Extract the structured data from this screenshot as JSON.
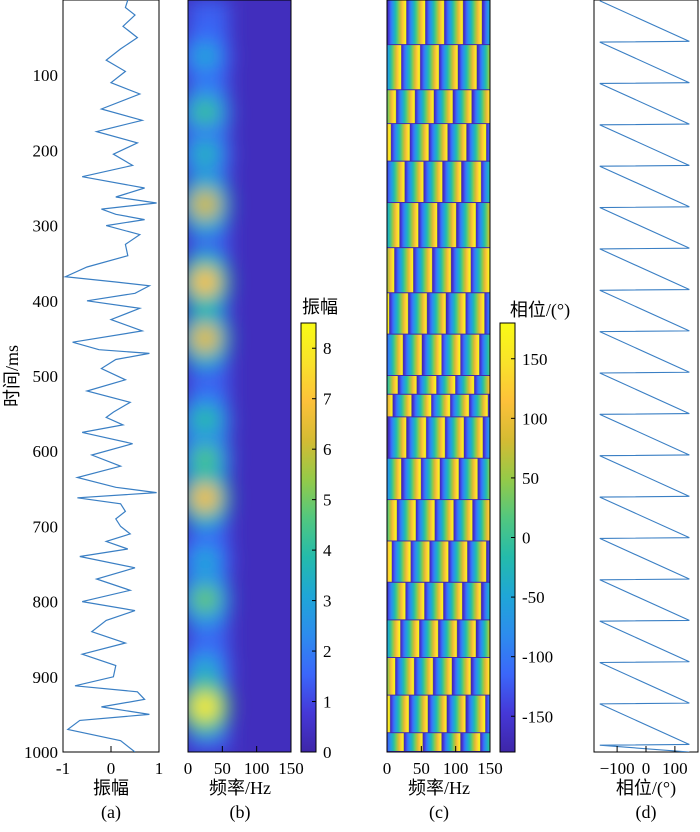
{
  "figure": {
    "panel_labels": [
      "(a)",
      "(b)",
      "(c)",
      "(d)"
    ],
    "shared_ylabel": "时间/ms",
    "y_ticks": [
      100,
      200,
      300,
      400,
      500,
      600,
      700,
      800,
      900,
      1000
    ]
  },
  "colors": {
    "trace": "#3a7fc4",
    "frame": "#000000"
  },
  "colormap": [
    "#3e26a8",
    "#4538d7",
    "#3b67fa",
    "#2d8ced",
    "#1fa6d7",
    "#24bbab",
    "#52c77f",
    "#95ca48",
    "#d5bb33",
    "#fdc13a",
    "#f9e32a",
    "#f9fb15"
  ],
  "chart_data": [
    {
      "type": "line",
      "panel": "(a)",
      "xlabel": "振幅",
      "ylabel": "时间/ms",
      "xlim": [
        -1,
        1
      ],
      "ylim": [
        0,
        1000
      ],
      "y_reversed": true,
      "x_ticks": [
        -1,
        0,
        1
      ],
      "y": [
        0,
        10,
        20,
        35,
        50,
        65,
        80,
        95,
        110,
        125,
        145,
        160,
        175,
        190,
        205,
        220,
        235,
        250,
        262,
        270,
        278,
        285,
        292,
        300,
        312,
        325,
        340,
        355,
        368,
        375,
        380,
        390,
        400,
        410,
        425,
        440,
        455,
        465,
        470,
        478,
        490,
        505,
        520,
        535,
        548,
        555,
        565,
        575,
        590,
        605,
        620,
        635,
        648,
        655,
        662,
        670,
        680,
        690,
        700,
        710,
        720,
        730,
        740,
        755,
        770,
        785,
        800,
        812,
        825,
        840,
        855,
        870,
        885,
        900,
        912,
        920,
        930,
        940,
        950,
        958,
        970,
        985,
        1000
      ],
      "values": [
        0.35,
        0.3,
        0.5,
        0.25,
        0.55,
        0.2,
        -0.1,
        0.3,
        0.0,
        0.6,
        -0.2,
        0.65,
        -0.3,
        0.55,
        0.05,
        0.45,
        -0.6,
        0.7,
        0.1,
        0.95,
        -0.2,
        0.1,
        0.7,
        -0.1,
        0.6,
        0.3,
        0.35,
        -0.5,
        -0.95,
        0.1,
        0.8,
        0.5,
        -0.5,
        0.6,
        0.0,
        0.65,
        -0.8,
        -0.25,
        0.8,
        0.1,
        -0.2,
        0.3,
        -0.5,
        0.4,
        0.05,
        -0.1,
        0.25,
        -0.6,
        0.45,
        -0.4,
        0.2,
        -0.7,
        0.1,
        0.95,
        -0.7,
        0.2,
        0.3,
        0.1,
        0.2,
        0.4,
        -0.1,
        0.35,
        -0.65,
        0.5,
        -0.3,
        0.4,
        -0.6,
        0.5,
        -0.1,
        -0.4,
        0.3,
        -0.6,
        0.1,
        0.05,
        -0.75,
        0.55,
        0.7,
        -0.2,
        0.8,
        -0.65,
        -0.9,
        0.2,
        0.5
      ]
    },
    {
      "type": "heatmap",
      "panel": "(b)",
      "xlabel": "频率/Hz",
      "xlim": [
        0,
        150
      ],
      "ylim": [
        0,
        1000
      ],
      "x_ticks": [
        0,
        50,
        100,
        150
      ],
      "colorbar": {
        "label": "振幅",
        "ticks": [
          0,
          1,
          2,
          3,
          4,
          5,
          6,
          7,
          8
        ],
        "range": [
          0,
          8.5
        ]
      },
      "peak_frequency_hz": 25,
      "blobs": [
        {
          "time": 75,
          "value": 3.0
        },
        {
          "time": 150,
          "value": 4.2
        },
        {
          "time": 205,
          "value": 3.5
        },
        {
          "time": 272,
          "value": 6.2
        },
        {
          "time": 375,
          "value": 7.0
        },
        {
          "time": 450,
          "value": 6.5
        },
        {
          "time": 560,
          "value": 4.0
        },
        {
          "time": 610,
          "value": 4.5
        },
        {
          "time": 662,
          "value": 6.8
        },
        {
          "time": 745,
          "value": 3.0
        },
        {
          "time": 797,
          "value": 4.8
        },
        {
          "time": 890,
          "value": 3.2
        },
        {
          "time": 940,
          "value": 8.0
        }
      ]
    },
    {
      "type": "heatmap",
      "panel": "(c)",
      "xlabel": "频率/Hz",
      "xlim": [
        0,
        150
      ],
      "ylim": [
        0,
        1000
      ],
      "x_ticks": [
        0,
        50,
        100,
        150
      ],
      "colorbar": {
        "label": "相位/(°)",
        "ticks": [
          150,
          100,
          50,
          0,
          -50,
          -100,
          -150
        ],
        "range": [
          -180,
          180
        ]
      },
      "phase_rate_deg_per_hz": 13,
      "jump_times": [
        60,
        120,
        165,
        215,
        270,
        330,
        390,
        445,
        500,
        525,
        555,
        610,
        665,
        720,
        775,
        825,
        875,
        925,
        975
      ]
    },
    {
      "type": "line",
      "panel": "(d)",
      "xlabel": "相位/(°)",
      "xlim": [
        -180,
        180
      ],
      "ylim": [
        0,
        1000
      ],
      "x_ticks": [
        -100,
        0,
        100
      ],
      "x_tick_labels": [
        "−100",
        "0",
        "100"
      ],
      "sawtooth_period": 55
    }
  ]
}
